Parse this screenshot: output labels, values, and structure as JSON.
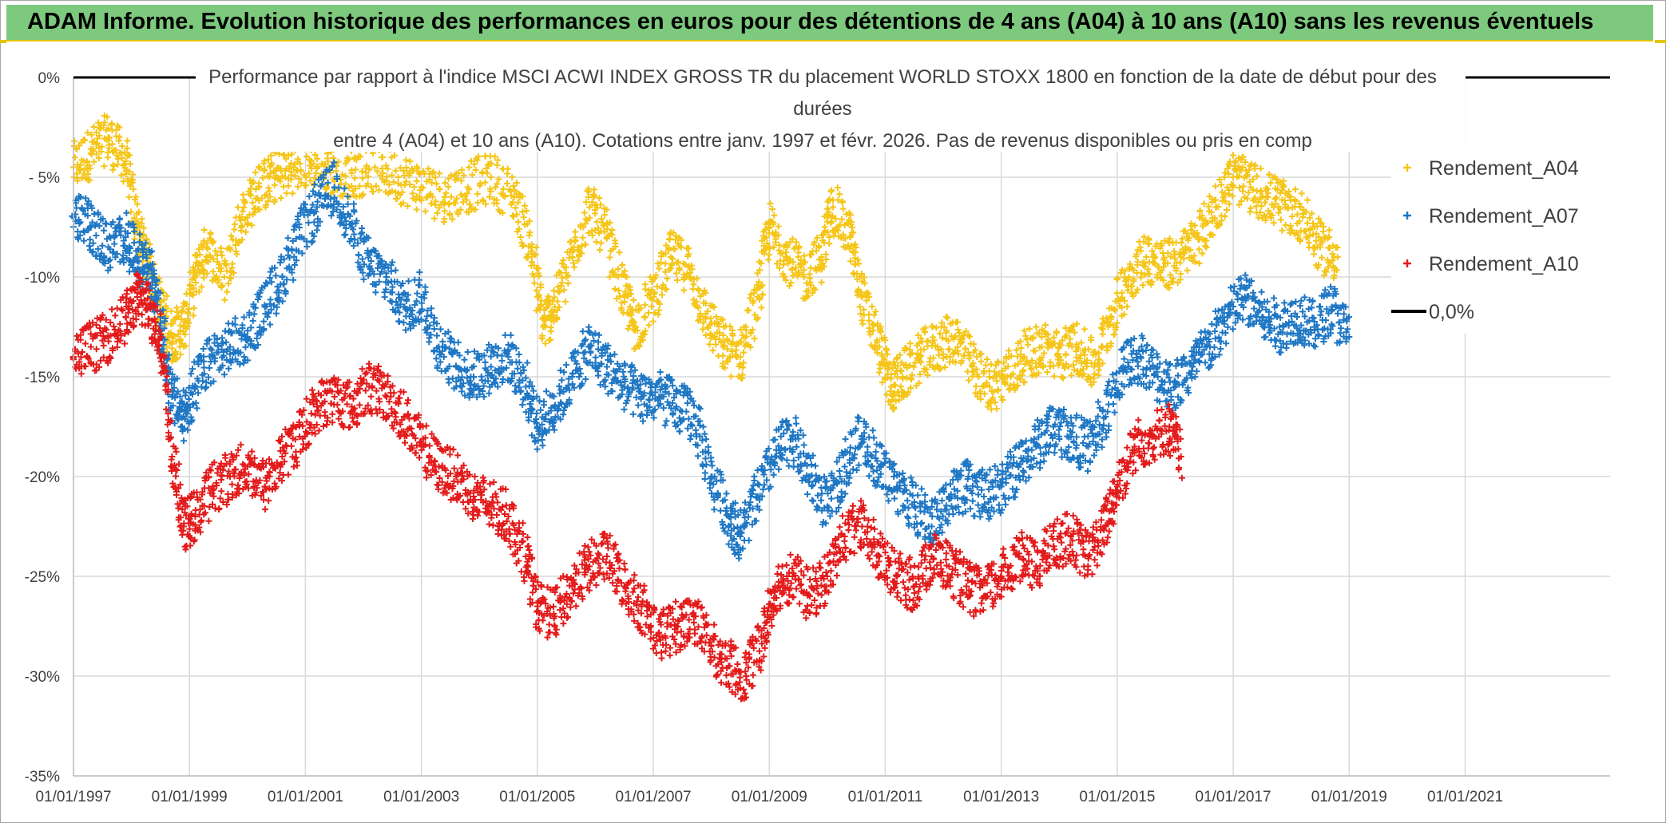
{
  "header": {
    "title": "ADAM Informe. Evolution historique des performances en euros pour des détentions de 4 ans (A04) à 10 ans (A10) sans les revenus éventuels"
  },
  "chart_data": {
    "type": "scatter",
    "subtitle_lines": [
      "Performance par rapport à l'indice MSCI ACWI INDEX GROSS TR  du placement WORLD STOXX 1800 en fonction de la date de début pour des",
      "durées",
      "entre 4 (A04) et 10 ans (A10). Cotations entre janv. 1997 et févr. 2026. Pas de revenus disponibles ou pris en comp"
    ],
    "x_ticks": [
      "01/01/1997",
      "01/01/1999",
      "01/01/2001",
      "01/01/2003",
      "01/01/2005",
      "01/01/2007",
      "01/01/2009",
      "01/01/2011",
      "01/01/2013",
      "01/01/2015",
      "01/01/2017",
      "01/01/2019",
      "01/01/2021"
    ],
    "xlim": [
      1997.0,
      2023.5
    ],
    "y_ticks": [
      "0%",
      "- 5%",
      "-10%",
      "-15%",
      "-20%",
      "-25%",
      "-30%",
      "-35%"
    ],
    "ylim": [
      -35,
      0
    ],
    "grid": true,
    "legend_position": "right",
    "reference_line": {
      "name": "0,0%",
      "value": 0,
      "color": "#000000"
    },
    "series": [
      {
        "name": "Rendement_A04",
        "color": "#f5c518",
        "marker": "+",
        "points": [
          [
            1997.0,
            -4.5
          ],
          [
            1997.3,
            -3.8
          ],
          [
            1997.6,
            -3.0
          ],
          [
            1997.9,
            -4.2
          ],
          [
            1998.1,
            -7.5
          ],
          [
            1998.3,
            -9.5
          ],
          [
            1998.5,
            -11.5
          ],
          [
            1998.7,
            -13.0
          ],
          [
            1998.9,
            -12.5
          ],
          [
            1999.1,
            -10.0
          ],
          [
            1999.3,
            -8.5
          ],
          [
            1999.6,
            -10.0
          ],
          [
            1999.9,
            -7.0
          ],
          [
            2000.2,
            -5.5
          ],
          [
            2000.5,
            -5.0
          ],
          [
            2000.8,
            -4.5
          ],
          [
            2001.1,
            -4.2
          ],
          [
            2001.4,
            -4.5
          ],
          [
            2001.8,
            -4.8
          ],
          [
            2002.2,
            -4.5
          ],
          [
            2002.6,
            -5.0
          ],
          [
            2003.0,
            -5.5
          ],
          [
            2003.4,
            -6.0
          ],
          [
            2003.8,
            -5.5
          ],
          [
            2004.2,
            -5.0
          ],
          [
            2004.6,
            -6.0
          ],
          [
            2004.9,
            -8.5
          ],
          [
            2005.1,
            -12.5
          ],
          [
            2005.3,
            -11.5
          ],
          [
            2005.6,
            -9.0
          ],
          [
            2005.9,
            -6.5
          ],
          [
            2006.2,
            -8.0
          ],
          [
            2006.5,
            -11.0
          ],
          [
            2006.7,
            -12.5
          ],
          [
            2007.0,
            -11.0
          ],
          [
            2007.3,
            -9.0
          ],
          [
            2007.6,
            -9.5
          ],
          [
            2007.9,
            -12.0
          ],
          [
            2008.2,
            -13.5
          ],
          [
            2008.5,
            -14.0
          ],
          [
            2008.8,
            -11.0
          ],
          [
            2009.0,
            -7.5
          ],
          [
            2009.3,
            -9.0
          ],
          [
            2009.6,
            -10.0
          ],
          [
            2009.9,
            -9.0
          ],
          [
            2010.1,
            -6.5
          ],
          [
            2010.4,
            -8.0
          ],
          [
            2010.6,
            -11.0
          ],
          [
            2010.9,
            -13.5
          ],
          [
            2011.1,
            -15.5
          ],
          [
            2011.3,
            -15.0
          ],
          [
            2011.6,
            -14.0
          ],
          [
            2011.9,
            -13.5
          ],
          [
            2012.2,
            -13.0
          ],
          [
            2012.5,
            -14.5
          ],
          [
            2012.8,
            -15.5
          ],
          [
            2013.1,
            -15.0
          ],
          [
            2013.4,
            -14.0
          ],
          [
            2013.7,
            -13.5
          ],
          [
            2014.0,
            -14.0
          ],
          [
            2014.3,
            -13.5
          ],
          [
            2014.6,
            -14.5
          ],
          [
            2014.9,
            -12.0
          ],
          [
            2015.2,
            -10.0
          ],
          [
            2015.5,
            -9.0
          ],
          [
            2015.8,
            -9.5
          ],
          [
            2016.1,
            -9.0
          ],
          [
            2016.4,
            -8.0
          ],
          [
            2016.7,
            -6.5
          ],
          [
            2017.0,
            -5.0
          ],
          [
            2017.3,
            -5.5
          ],
          [
            2017.6,
            -6.0
          ],
          [
            2017.9,
            -6.5
          ],
          [
            2018.2,
            -7.0
          ],
          [
            2018.5,
            -8.5
          ],
          [
            2018.8,
            -9.0
          ]
        ]
      },
      {
        "name": "Rendement_A07",
        "color": "#1f77c4",
        "marker": "+",
        "points": [
          [
            1997.0,
            -7.0
          ],
          [
            1997.3,
            -7.5
          ],
          [
            1997.6,
            -8.5
          ],
          [
            1997.9,
            -8.0
          ],
          [
            1998.1,
            -9.0
          ],
          [
            1998.3,
            -9.5
          ],
          [
            1998.5,
            -12.0
          ],
          [
            1998.7,
            -16.0
          ],
          [
            1998.9,
            -17.0
          ],
          [
            1999.1,
            -15.5
          ],
          [
            1999.4,
            -14.0
          ],
          [
            1999.7,
            -13.5
          ],
          [
            2000.0,
            -13.0
          ],
          [
            2000.3,
            -11.5
          ],
          [
            2000.6,
            -10.0
          ],
          [
            2000.9,
            -8.0
          ],
          [
            2001.2,
            -6.5
          ],
          [
            2001.5,
            -5.5
          ],
          [
            2001.8,
            -7.5
          ],
          [
            2002.1,
            -9.5
          ],
          [
            2002.4,
            -10.0
          ],
          [
            2002.7,
            -11.5
          ],
          [
            2003.0,
            -11.0
          ],
          [
            2003.3,
            -13.5
          ],
          [
            2003.6,
            -14.5
          ],
          [
            2003.9,
            -15.0
          ],
          [
            2004.2,
            -14.5
          ],
          [
            2004.5,
            -14.0
          ],
          [
            2004.8,
            -15.5
          ],
          [
            2005.0,
            -17.5
          ],
          [
            2005.3,
            -16.5
          ],
          [
            2005.6,
            -15.0
          ],
          [
            2005.9,
            -13.5
          ],
          [
            2006.2,
            -14.5
          ],
          [
            2006.5,
            -15.5
          ],
          [
            2006.8,
            -16.0
          ],
          [
            2007.1,
            -16.0
          ],
          [
            2007.4,
            -16.5
          ],
          [
            2007.7,
            -17.0
          ],
          [
            2008.0,
            -20.0
          ],
          [
            2008.3,
            -22.0
          ],
          [
            2008.5,
            -23.0
          ],
          [
            2008.8,
            -21.0
          ],
          [
            2009.1,
            -19.0
          ],
          [
            2009.4,
            -18.0
          ],
          [
            2009.7,
            -20.0
          ],
          [
            2010.0,
            -21.5
          ],
          [
            2010.3,
            -19.5
          ],
          [
            2010.6,
            -18.0
          ],
          [
            2010.9,
            -19.5
          ],
          [
            2011.2,
            -20.5
          ],
          [
            2011.5,
            -21.5
          ],
          [
            2011.8,
            -22.5
          ],
          [
            2012.1,
            -21.0
          ],
          [
            2012.4,
            -20.5
          ],
          [
            2012.7,
            -21.0
          ],
          [
            2013.0,
            -20.5
          ],
          [
            2013.3,
            -19.5
          ],
          [
            2013.6,
            -18.5
          ],
          [
            2013.9,
            -17.5
          ],
          [
            2014.2,
            -18.0
          ],
          [
            2014.5,
            -18.5
          ],
          [
            2014.8,
            -17.0
          ],
          [
            2015.1,
            -14.5
          ],
          [
            2015.4,
            -14.0
          ],
          [
            2015.7,
            -15.0
          ],
          [
            2016.0,
            -15.5
          ],
          [
            2016.3,
            -14.5
          ],
          [
            2016.6,
            -13.5
          ],
          [
            2016.9,
            -12.0
          ],
          [
            2017.2,
            -11.0
          ],
          [
            2017.5,
            -12.0
          ],
          [
            2017.8,
            -12.5
          ],
          [
            2018.1,
            -12.0
          ],
          [
            2018.4,
            -12.5
          ],
          [
            2018.7,
            -11.5
          ],
          [
            2019.0,
            -13.0
          ]
        ]
      },
      {
        "name": "Rendement_A10",
        "color": "#e31b1b",
        "marker": "+",
        "points": [
          [
            1997.0,
            -14.0
          ],
          [
            1997.3,
            -13.5
          ],
          [
            1997.6,
            -13.0
          ],
          [
            1997.9,
            -12.0
          ],
          [
            1998.1,
            -11.0
          ],
          [
            1998.3,
            -11.5
          ],
          [
            1998.5,
            -13.0
          ],
          [
            1998.7,
            -19.0
          ],
          [
            1998.9,
            -22.5
          ],
          [
            1999.1,
            -22.0
          ],
          [
            1999.4,
            -20.5
          ],
          [
            1999.7,
            -20.0
          ],
          [
            2000.0,
            -19.5
          ],
          [
            2000.3,
            -20.5
          ],
          [
            2000.6,
            -19.0
          ],
          [
            2000.9,
            -18.0
          ],
          [
            2001.2,
            -16.5
          ],
          [
            2001.5,
            -16.0
          ],
          [
            2001.8,
            -16.5
          ],
          [
            2002.1,
            -15.5
          ],
          [
            2002.4,
            -16.0
          ],
          [
            2002.7,
            -17.0
          ],
          [
            2003.0,
            -18.5
          ],
          [
            2003.3,
            -19.5
          ],
          [
            2003.6,
            -20.0
          ],
          [
            2003.9,
            -21.0
          ],
          [
            2004.2,
            -21.5
          ],
          [
            2004.5,
            -22.0
          ],
          [
            2004.8,
            -24.0
          ],
          [
            2005.0,
            -26.5
          ],
          [
            2005.3,
            -27.0
          ],
          [
            2005.6,
            -25.5
          ],
          [
            2005.9,
            -24.5
          ],
          [
            2006.2,
            -24.0
          ],
          [
            2006.5,
            -25.5
          ],
          [
            2006.8,
            -26.5
          ],
          [
            2007.1,
            -28.0
          ],
          [
            2007.4,
            -27.5
          ],
          [
            2007.7,
            -27.0
          ],
          [
            2008.0,
            -28.5
          ],
          [
            2008.3,
            -29.5
          ],
          [
            2008.6,
            -30.0
          ],
          [
            2008.9,
            -28.0
          ],
          [
            2009.1,
            -25.5
          ],
          [
            2009.4,
            -25.0
          ],
          [
            2009.7,
            -26.0
          ],
          [
            2010.0,
            -25.0
          ],
          [
            2010.3,
            -23.0
          ],
          [
            2010.6,
            -22.5
          ],
          [
            2010.9,
            -24.0
          ],
          [
            2011.2,
            -25.0
          ],
          [
            2011.5,
            -25.5
          ],
          [
            2011.8,
            -24.0
          ],
          [
            2012.1,
            -24.5
          ],
          [
            2012.4,
            -25.5
          ],
          [
            2012.7,
            -26.0
          ],
          [
            2013.0,
            -25.0
          ],
          [
            2013.3,
            -24.0
          ],
          [
            2013.6,
            -24.5
          ],
          [
            2013.9,
            -23.5
          ],
          [
            2014.2,
            -23.0
          ],
          [
            2014.5,
            -24.0
          ],
          [
            2014.8,
            -22.5
          ],
          [
            2015.0,
            -20.5
          ],
          [
            2015.3,
            -18.5
          ],
          [
            2015.6,
            -18.0
          ],
          [
            2015.9,
            -17.5
          ],
          [
            2016.1,
            -19.0
          ]
        ]
      }
    ]
  }
}
